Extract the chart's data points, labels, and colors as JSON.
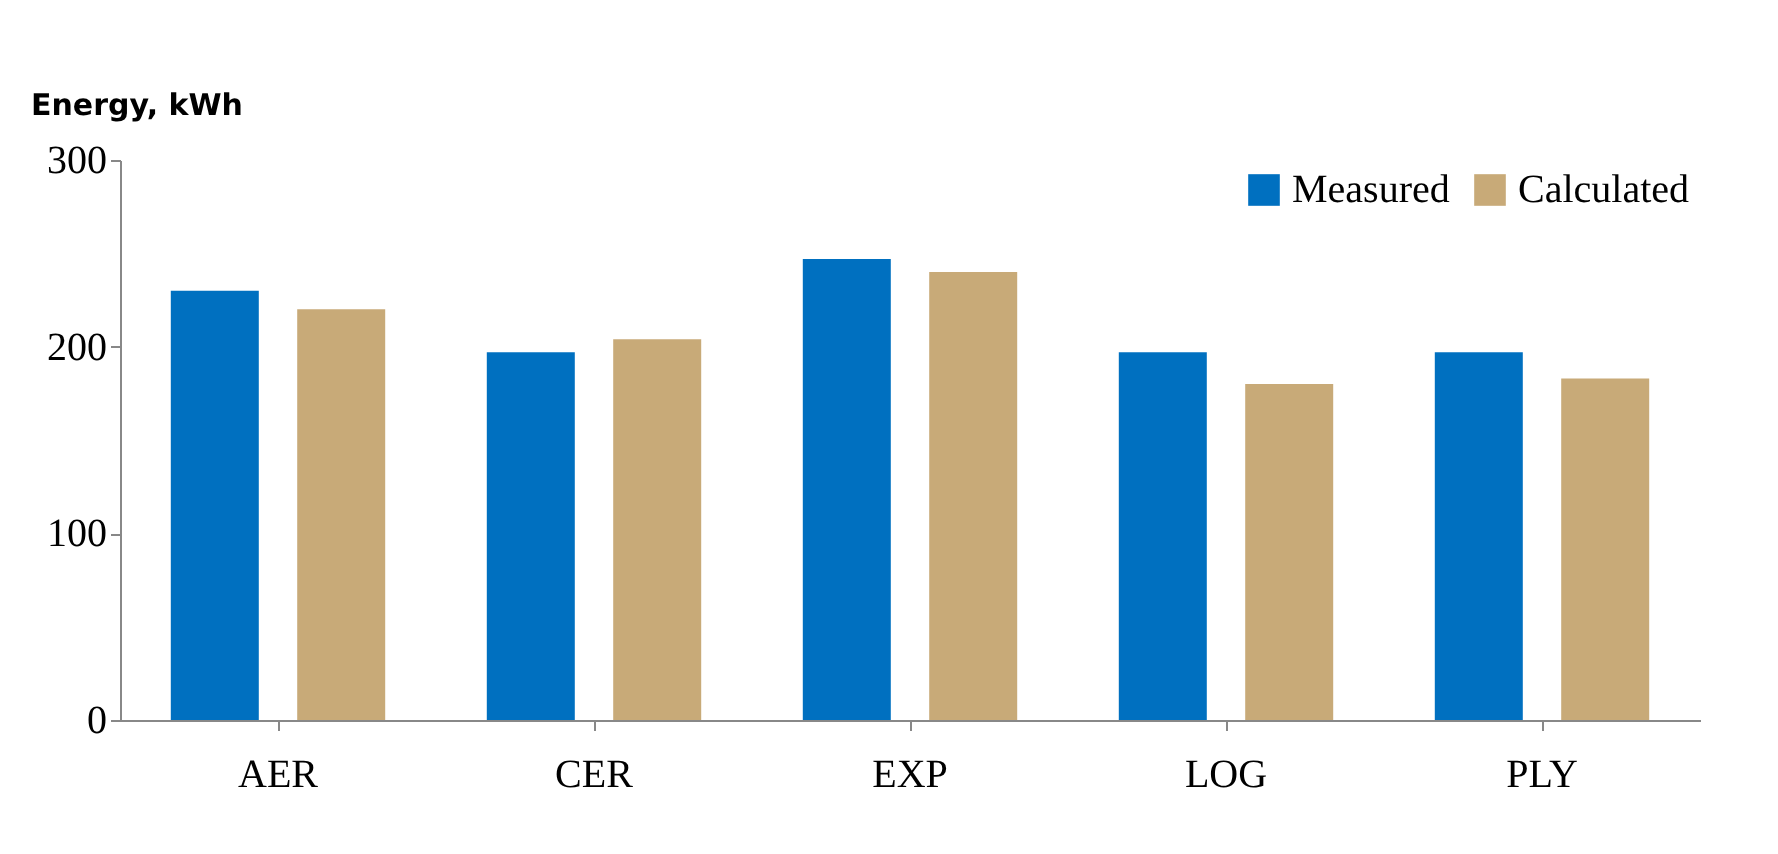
{
  "chart_data": {
    "type": "bar",
    "ylabel": "Energy, kWh",
    "categories": [
      "AER",
      "CER",
      "EXP",
      "LOG",
      "PLY"
    ],
    "series": [
      {
        "name": "Measured",
        "color": "#0070c0",
        "values": [
          230,
          197,
          247,
          197,
          197
        ]
      },
      {
        "name": "Calculated",
        "color": "#c8aa78",
        "values": [
          220,
          204,
          240,
          180,
          183
        ]
      }
    ],
    "ylim": [
      0,
      300
    ],
    "yticks": [
      0,
      100,
      200,
      300
    ],
    "grid": false,
    "legend": "top right"
  }
}
